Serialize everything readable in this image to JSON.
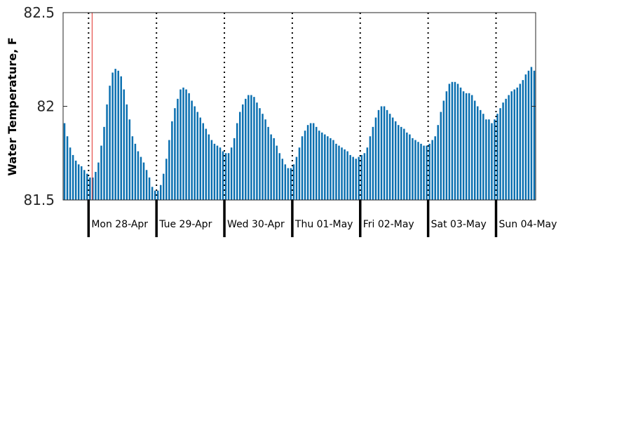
{
  "chart_data": {
    "type": "bar",
    "title": "",
    "xlabel": "",
    "ylabel": "Water Temperature, F",
    "ylim": [
      81.5,
      82.5
    ],
    "yticks": [
      "81.5",
      "82",
      "82.5"
    ],
    "grid": false,
    "bar_color": "#0a6fb0",
    "marker_color": "#e0302a",
    "day_labels": [
      "Mon 28-Apr",
      "Tue 29-Apr",
      "Wed 30-Apr",
      "Thu 01-May",
      "Fri 02-May",
      "Sat 03-May",
      "Sun 04-May"
    ],
    "hours_before_first_day": 9,
    "now_marker_hour": 9.75,
    "series": [
      {
        "values": [
          81.91,
          81.84,
          81.78,
          81.74,
          81.71,
          81.69,
          81.68,
          81.66,
          81.64,
          81.62,
          81.62,
          81.65,
          81.7,
          81.79,
          81.89,
          82.01,
          82.11,
          82.18,
          82.2,
          82.19,
          82.16,
          82.09,
          82.01,
          81.93,
          81.84,
          81.8,
          81.76,
          81.73,
          81.7,
          81.66,
          81.62,
          81.57,
          81.55,
          81.55,
          81.58,
          81.64,
          81.72,
          81.82,
          81.92,
          81.99,
          82.04,
          82.09,
          82.1,
          82.09,
          82.07,
          82.03,
          82.0,
          81.97,
          81.94,
          81.91,
          81.88,
          81.85,
          81.82,
          81.8,
          81.79,
          81.78,
          81.76,
          81.75,
          81.75,
          81.78,
          81.83,
          81.91,
          81.97,
          82.01,
          82.04,
          82.06,
          82.06,
          82.05,
          82.02,
          81.99,
          81.96,
          81.93,
          81.89,
          81.85,
          81.83,
          81.79,
          81.75,
          81.72,
          81.69,
          81.67,
          81.67,
          81.69,
          81.73,
          81.78,
          81.84,
          81.87,
          81.9,
          81.91,
          81.91,
          81.89,
          81.87,
          81.86,
          81.85,
          81.84,
          81.83,
          81.82,
          81.8,
          81.79,
          81.78,
          81.77,
          81.76,
          81.74,
          81.73,
          81.72,
          81.73,
          81.74,
          81.75,
          81.78,
          81.84,
          81.89,
          81.94,
          81.98,
          82.0,
          82.0,
          81.98,
          81.96,
          81.94,
          81.92,
          81.9,
          81.89,
          81.88,
          81.86,
          81.85,
          81.83,
          81.82,
          81.81,
          81.8,
          81.79,
          81.79,
          81.8,
          81.82,
          81.84,
          81.9,
          81.97,
          82.03,
          82.08,
          82.12,
          82.13,
          82.13,
          82.12,
          82.1,
          82.08,
          82.07,
          82.07,
          82.06,
          82.03,
          82.0,
          81.98,
          81.96,
          81.93,
          81.93,
          81.91,
          81.93,
          81.96,
          81.99,
          82.02,
          82.04,
          82.06,
          82.08,
          82.09,
          82.1,
          82.12,
          82.14,
          82.17,
          82.19,
          82.21,
          82.19
        ]
      }
    ]
  }
}
